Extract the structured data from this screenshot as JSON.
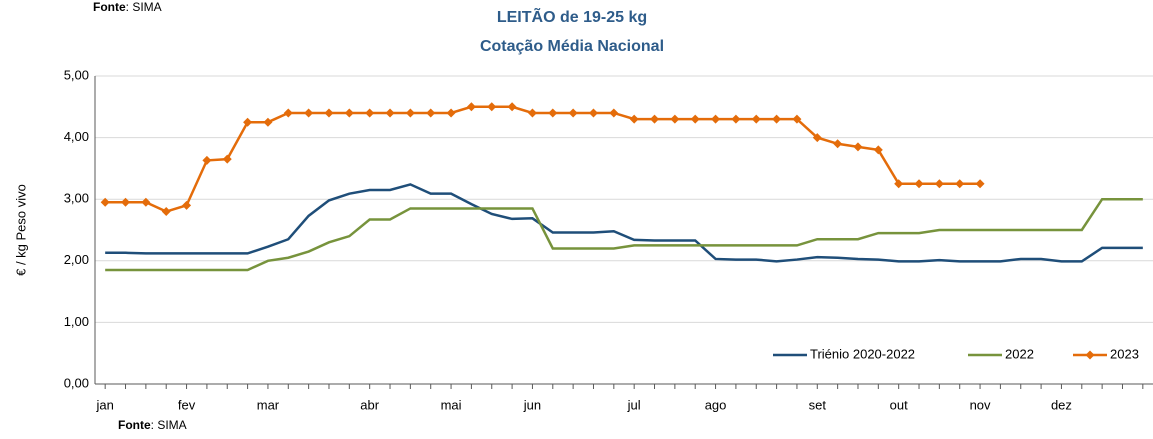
{
  "chart_data": {
    "type": "line",
    "title": "LEITÃO de 19-25 kg",
    "subtitle": "Cotação Média Nacional",
    "source_label": "Fonte",
    "source_text": ": SIMA",
    "y_label": "€ / kg Peso vivo",
    "x": [
      1,
      2,
      3,
      4,
      5,
      6,
      7,
      8,
      9,
      10,
      11,
      12,
      13,
      14,
      15,
      16,
      17,
      18,
      19,
      20,
      21,
      22,
      23,
      24,
      25,
      26,
      27,
      28,
      29,
      30,
      31,
      32,
      33,
      34,
      35,
      36,
      37,
      38,
      39,
      40,
      41,
      42,
      43,
      44,
      45,
      46,
      47,
      48,
      49,
      50,
      51,
      52
    ],
    "xlim": [
      0.5,
      52.5
    ],
    "xticks": [
      {
        "value": 1,
        "label": "jan"
      },
      {
        "value": 5,
        "label": "fev"
      },
      {
        "value": 9,
        "label": "mar"
      },
      {
        "value": 14,
        "label": "abr"
      },
      {
        "value": 18,
        "label": "mai"
      },
      {
        "value": 22,
        "label": "jun"
      },
      {
        "value": 27,
        "label": "jul"
      },
      {
        "value": 31,
        "label": "ago"
      },
      {
        "value": 36,
        "label": "set"
      },
      {
        "value": 40,
        "label": "out"
      },
      {
        "value": 44,
        "label": "nov"
      },
      {
        "value": 48,
        "label": "dez"
      }
    ],
    "ylim": [
      0,
      5
    ],
    "yticks": [
      {
        "value": 0,
        "label": "0,00"
      },
      {
        "value": 1,
        "label": "1,00"
      },
      {
        "value": 2,
        "label": "2,00"
      },
      {
        "value": 3,
        "label": "3,00"
      },
      {
        "value": 4,
        "label": "4,00"
      },
      {
        "value": 5,
        "label": "5,00"
      }
    ],
    "grid": true,
    "legend": "lower right",
    "series": [
      {
        "name": "Triénio 2020-2022",
        "color": "#1f4e79",
        "marker": false,
        "values": [
          2.13,
          2.13,
          2.12,
          2.12,
          2.12,
          2.12,
          2.12,
          2.12,
          2.23,
          2.35,
          2.73,
          2.98,
          3.09,
          3.15,
          3.15,
          3.24,
          3.09,
          3.09,
          2.92,
          2.76,
          2.68,
          2.69,
          2.46,
          2.46,
          2.46,
          2.48,
          2.34,
          2.33,
          2.33,
          2.33,
          2.03,
          2.02,
          2.02,
          1.99,
          2.02,
          2.06,
          2.05,
          2.03,
          2.02,
          1.99,
          1.99,
          2.01,
          1.99,
          1.99,
          1.99,
          2.03,
          2.03,
          1.99,
          1.99,
          2.21,
          2.21,
          2.21
        ]
      },
      {
        "name": "2022",
        "color": "#77933c",
        "marker": false,
        "values": [
          1.85,
          1.85,
          1.85,
          1.85,
          1.85,
          1.85,
          1.85,
          1.85,
          2.0,
          2.05,
          2.15,
          2.3,
          2.4,
          2.67,
          2.67,
          2.85,
          2.85,
          2.85,
          2.85,
          2.85,
          2.85,
          2.85,
          2.2,
          2.2,
          2.2,
          2.2,
          2.25,
          2.25,
          2.25,
          2.25,
          2.25,
          2.25,
          2.25,
          2.25,
          2.25,
          2.35,
          2.35,
          2.35,
          2.45,
          2.45,
          2.45,
          2.5,
          2.5,
          2.5,
          2.5,
          2.5,
          2.5,
          2.5,
          2.5,
          3.0,
          3.0,
          3.0
        ]
      },
      {
        "name": "2023",
        "color": "#e46c0a",
        "marker": true,
        "values": [
          2.95,
          2.95,
          2.95,
          2.8,
          2.9,
          3.63,
          3.65,
          4.25,
          4.25,
          4.4,
          4.4,
          4.4,
          4.4,
          4.4,
          4.4,
          4.4,
          4.4,
          4.4,
          4.5,
          4.5,
          4.5,
          4.4,
          4.4,
          4.4,
          4.4,
          4.4,
          4.3,
          4.3,
          4.3,
          4.3,
          4.3,
          4.3,
          4.3,
          4.3,
          4.3,
          4.0,
          3.9,
          3.85,
          3.8,
          3.25,
          3.25,
          3.25,
          3.25,
          3.25,
          null,
          null,
          null,
          null,
          null,
          null,
          null,
          null
        ]
      }
    ]
  }
}
